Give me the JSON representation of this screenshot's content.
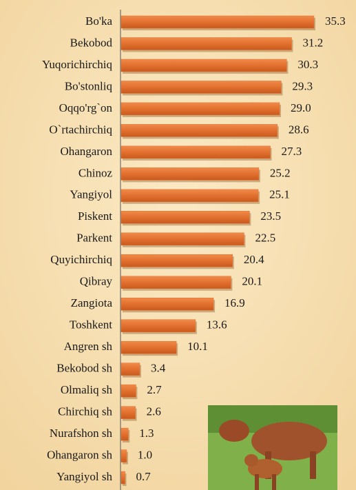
{
  "chart_data": {
    "type": "bar",
    "orientation": "horizontal",
    "color": "#e2702f",
    "categories": [
      "Bo'ka",
      "Bekobod",
      "Yuqorichirchiq",
      "Bo'stonliq",
      "Oqqo'rg`on",
      "O`rtachirchiq",
      "Ohangaron",
      "Chinoz",
      "Yangiyol",
      "Piskent",
      "Parkent",
      "Quyichirchiq",
      "Qibray",
      "Zangiota",
      "Toshkent",
      "Angren sh",
      "Bekobod sh",
      "Olmaliq sh",
      "Chirchiq sh",
      "Nurafshon sh",
      "Ohangaron sh",
      "Yangiyol sh"
    ],
    "values": [
      35.3,
      31.2,
      30.3,
      29.3,
      29.0,
      28.6,
      27.3,
      25.2,
      25.1,
      23.5,
      22.5,
      20.4,
      20.1,
      16.9,
      13.6,
      10.1,
      3.4,
      2.7,
      2.6,
      1.3,
      1.0,
      0.7
    ],
    "value_labels": [
      "35.3",
      "31.2",
      "30.3",
      "29.3",
      "29.0",
      "28.6",
      "27.3",
      "25.2",
      "25.1",
      "23.5",
      "22.5",
      "20.4",
      "20.1",
      "16.9",
      "13.6",
      "10.1",
      "3.4",
      "2.7",
      "2.6",
      "1.3",
      "1.0",
      "0.7"
    ]
  }
}
